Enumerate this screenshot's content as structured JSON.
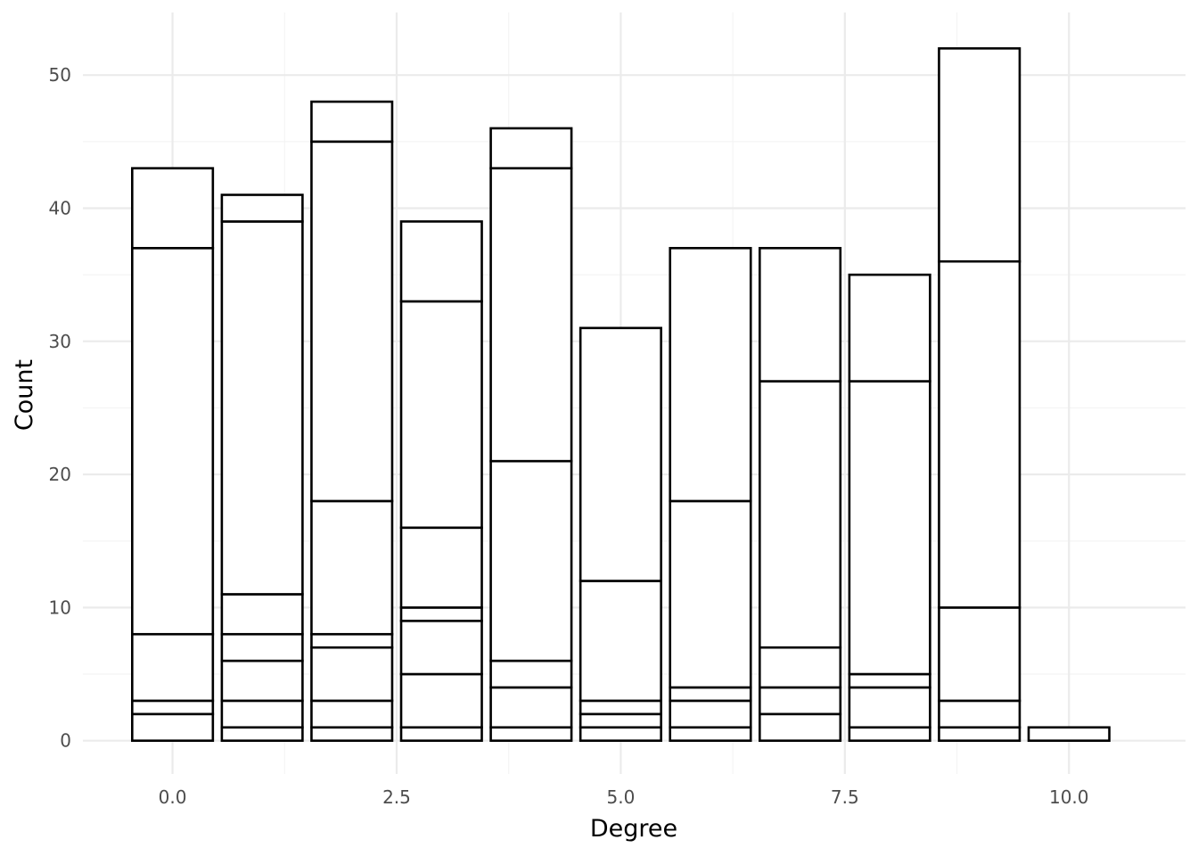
{
  "chart_data": {
    "type": "bar",
    "stacked": true,
    "xlabel": "Degree",
    "ylabel": "Count",
    "xlim": [
      -1,
      11.3
    ],
    "ylim": [
      -2.5,
      54.7
    ],
    "x_ticks": [
      0.0,
      2.5,
      5.0,
      7.5,
      10.0
    ],
    "x_tick_labels": [
      "0.0",
      "2.5",
      "5.0",
      "7.5",
      "10.0"
    ],
    "y_ticks": [
      0,
      10,
      20,
      30,
      40,
      50
    ],
    "y_tick_labels": [
      "0",
      "10",
      "20",
      "30",
      "40",
      "50"
    ],
    "grid": true,
    "legend": "none",
    "bar_width": 0.9,
    "bars": [
      {
        "x": 0,
        "stack_boundaries": [
          2,
          3,
          8,
          37,
          43
        ]
      },
      {
        "x": 1,
        "stack_boundaries": [
          1,
          3,
          6,
          8,
          11,
          39,
          41
        ]
      },
      {
        "x": 2,
        "stack_boundaries": [
          1,
          3,
          7,
          8,
          18,
          45,
          48
        ]
      },
      {
        "x": 3,
        "stack_boundaries": [
          1,
          5,
          9,
          10,
          16,
          33,
          39
        ]
      },
      {
        "x": 4,
        "stack_boundaries": [
          1,
          4,
          6,
          21,
          43,
          46
        ]
      },
      {
        "x": 5,
        "stack_boundaries": [
          1,
          2,
          3,
          12,
          31
        ]
      },
      {
        "x": 6,
        "stack_boundaries": [
          1,
          3,
          4,
          18,
          37
        ]
      },
      {
        "x": 7,
        "stack_boundaries": [
          2,
          4,
          7,
          27,
          37
        ]
      },
      {
        "x": 8,
        "stack_boundaries": [
          1,
          4,
          5,
          27,
          35
        ]
      },
      {
        "x": 9,
        "stack_boundaries": [
          1,
          3,
          10,
          36,
          52
        ]
      },
      {
        "x": 10,
        "stack_boundaries": [
          1
        ]
      }
    ],
    "colors": {
      "bar_fill": "#ffffff",
      "bar_stroke": "#000000",
      "grid_major": "#ebebeb",
      "grid_minor": "#f4f4f4"
    }
  }
}
